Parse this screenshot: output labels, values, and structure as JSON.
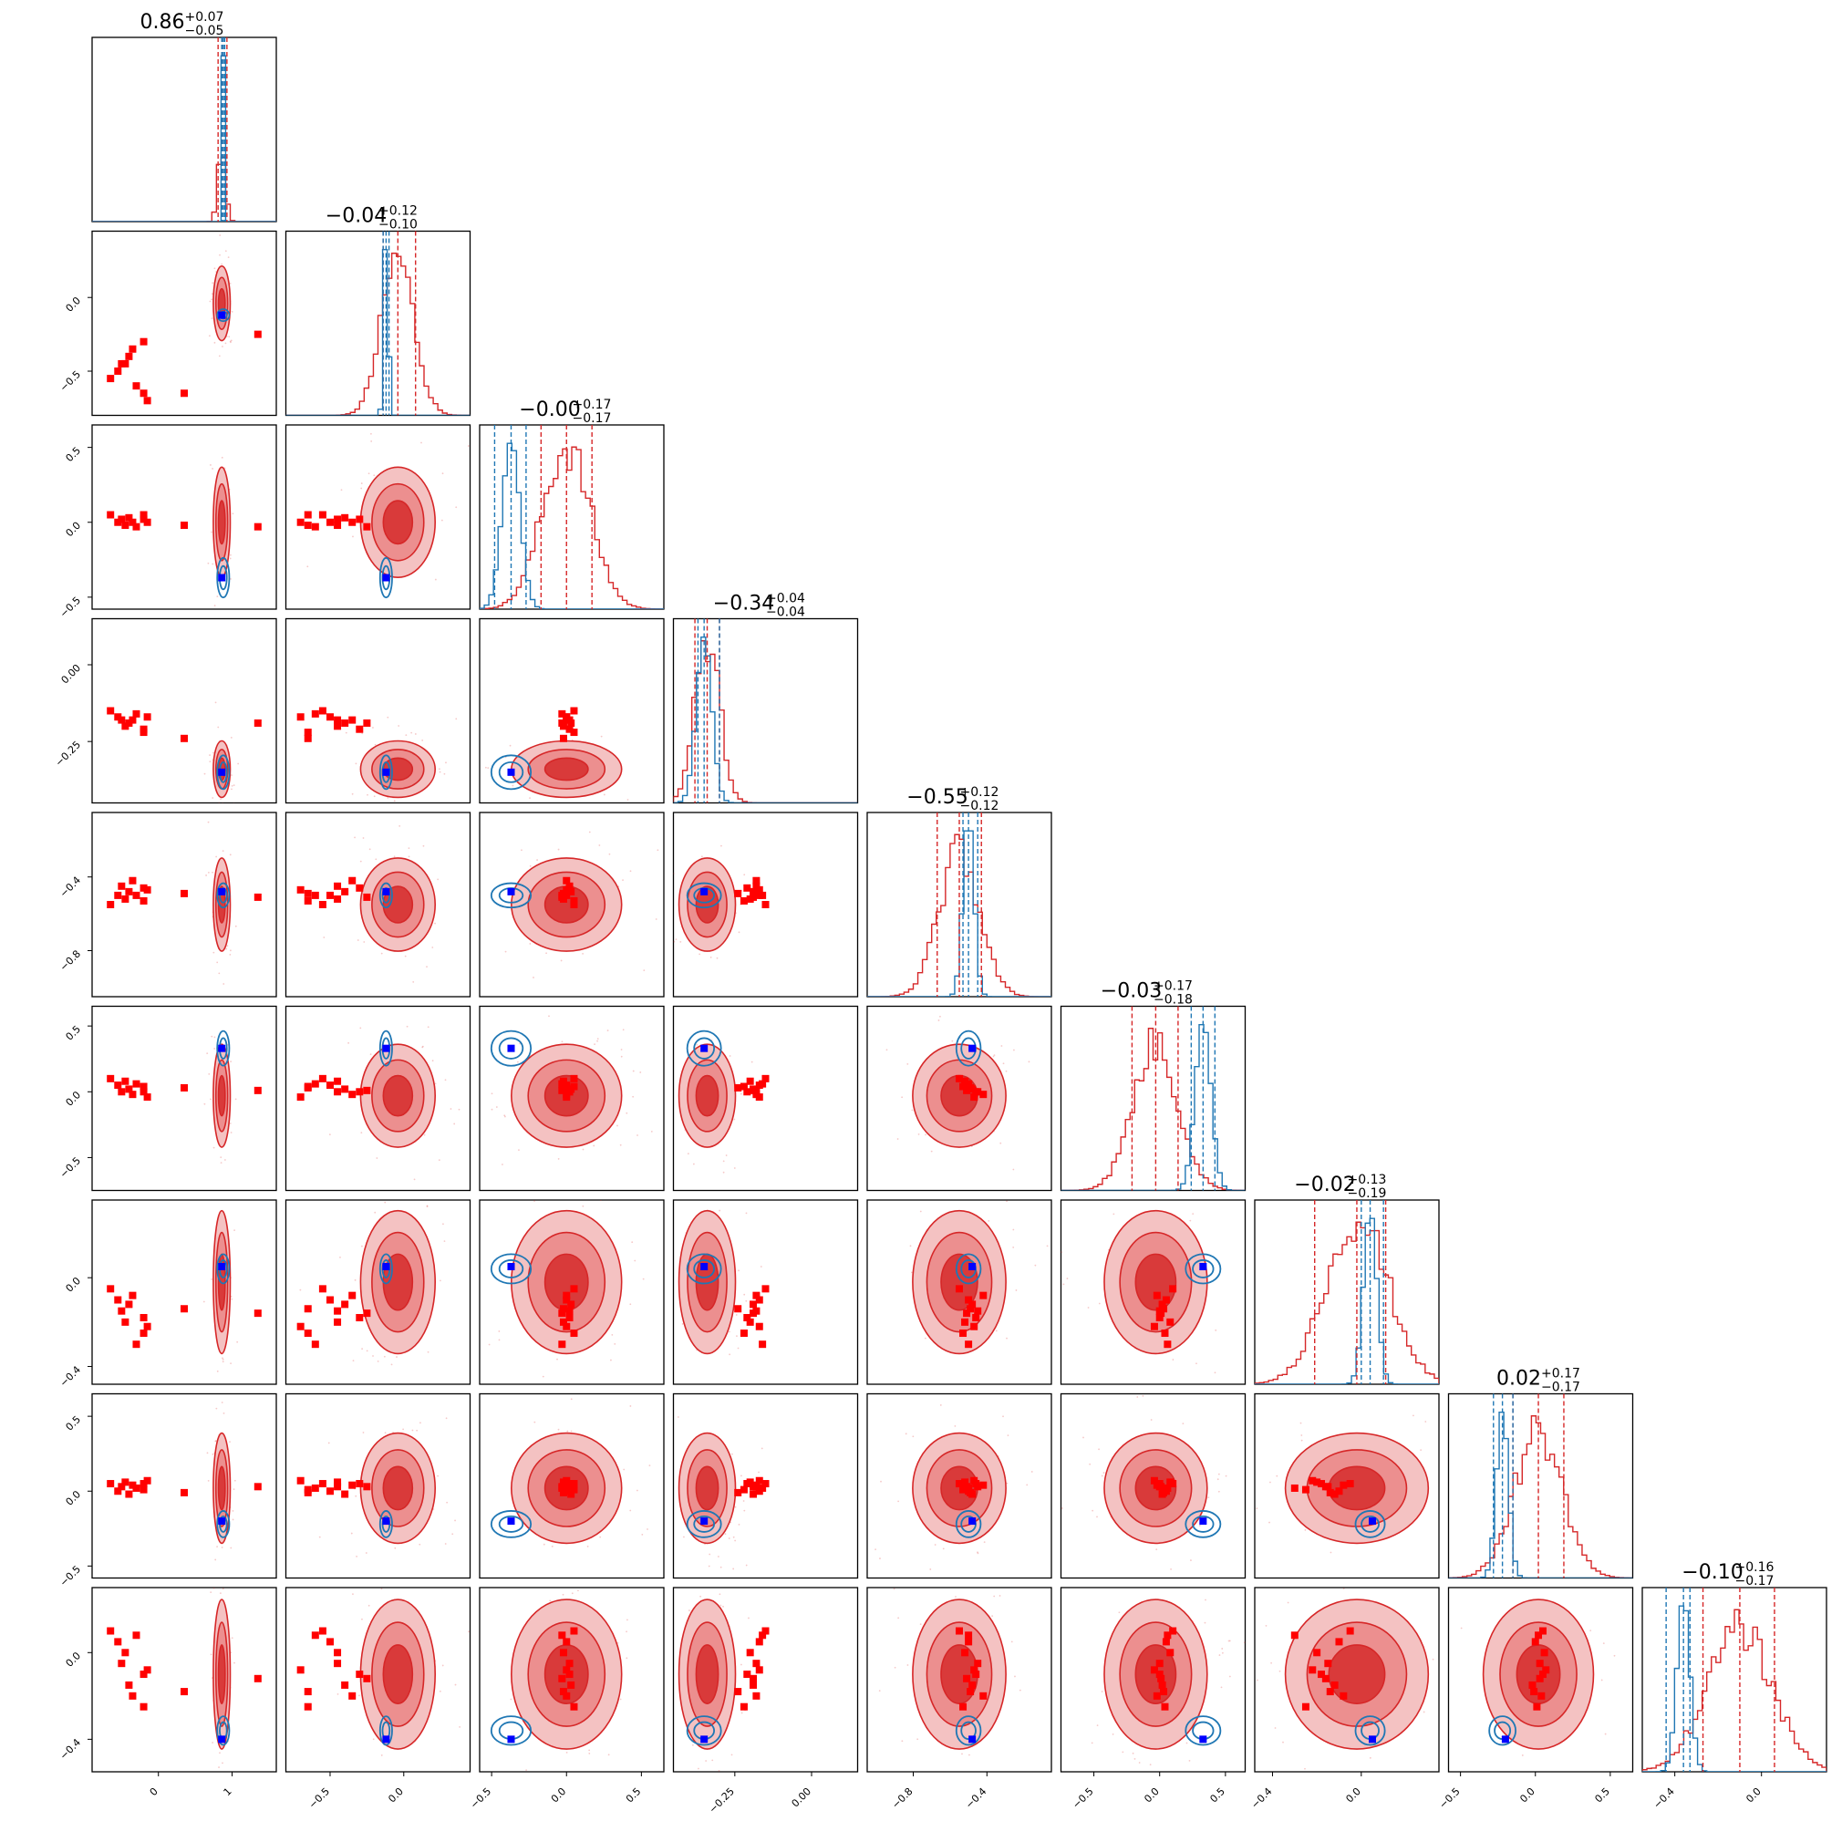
{
  "chart_data": {
    "type": "corner",
    "n_params": 9,
    "series": [
      {
        "name": "",
        "color": "#d62728",
        "style": "filled 2D density contours, step histograms, square markers"
      },
      {
        "name": "",
        "color": "#1f77b4",
        "style": "line 2D contours, step histograms, blue square marker"
      }
    ],
    "diagonal_titles": [
      {
        "value": "0.86",
        "plus": "+0.07",
        "minus": "−0.05"
      },
      {
        "value": "−0.04",
        "plus": "+0.12",
        "minus": "−0.10"
      },
      {
        "value": "−0.00",
        "plus": "+0.17",
        "minus": "−0.17"
      },
      {
        "value": "−0.34",
        "plus": "+0.04",
        "minus": "−0.04"
      },
      {
        "value": "−0.55",
        "plus": "+0.12",
        "minus": "−0.12"
      },
      {
        "value": "−0.03",
        "plus": "+0.17",
        "minus": "−0.18"
      },
      {
        "value": "−0.02",
        "plus": "+0.13",
        "minus": "−0.19"
      },
      {
        "value": "0.02",
        "plus": "+0.17",
        "minus": "−0.17"
      },
      {
        "value": "−0.10",
        "plus": "+0.16",
        "minus": "−0.17"
      }
    ],
    "params": [
      {
        "range": [
          -0.9,
          1.6
        ],
        "ticks": [
          0,
          1
        ],
        "tick_labels": [
          "0",
          "1"
        ],
        "red_median": 0.86,
        "red_q": [
          0.81,
          0.93
        ],
        "red_sd": 0.05,
        "blue_median": 0.88,
        "blue_q": [
          0.86,
          0.9
        ],
        "blue_sd": 0.015,
        "truth": 0.86,
        "outliers": [
          -0.65,
          -0.55,
          -0.5,
          -0.45,
          -0.4,
          -0.35,
          -0.3,
          -0.2,
          -0.2,
          -0.15,
          0.35,
          1.35
        ]
      },
      {
        "range": [
          -0.8,
          0.45
        ],
        "ticks": [
          -0.5,
          0.0
        ],
        "tick_labels": [
          "−0.5",
          "0.0"
        ],
        "red_median": -0.04,
        "red_q": [
          -0.14,
          0.08
        ],
        "red_sd": 0.11,
        "blue_median": -0.12,
        "blue_q": [
          -0.14,
          -0.1
        ],
        "blue_sd": 0.015,
        "truth": -0.12,
        "outliers": [
          -0.55,
          -0.5,
          -0.45,
          -0.45,
          -0.4,
          -0.35,
          -0.6,
          -0.3,
          -0.65,
          -0.7,
          -0.65,
          -0.25
        ]
      },
      {
        "range": [
          -0.58,
          0.65
        ],
        "ticks": [
          -0.5,
          0.0,
          0.5
        ],
        "tick_labels": [
          "−0.5",
          "0.0",
          "0.5"
        ],
        "red_median": -0.0,
        "red_q": [
          -0.17,
          0.17
        ],
        "red_sd": 0.16,
        "blue_median": -0.37,
        "blue_q": [
          -0.48,
          -0.27
        ],
        "blue_sd": 0.06,
        "truth": -0.37,
        "outliers": [
          0.05,
          0.0,
          0.02,
          -0.02,
          0.03,
          0.0,
          -0.03,
          0.02,
          0.05,
          0.0,
          -0.02,
          -0.03
        ]
      },
      {
        "range": [
          -0.45,
          0.15
        ],
        "ticks": [
          -0.25,
          0.0
        ],
        "tick_labels": [
          "−0.25",
          "0.00"
        ],
        "red_median": -0.34,
        "red_q": [
          -0.38,
          -0.3
        ],
        "red_sd": 0.04,
        "blue_median": -0.35,
        "blue_q": [
          -0.37,
          -0.3
        ],
        "blue_sd": 0.025,
        "truth": -0.35,
        "outliers": [
          -0.15,
          -0.17,
          -0.18,
          -0.2,
          -0.19,
          -0.18,
          -0.16,
          -0.21,
          -0.22,
          -0.17,
          -0.24,
          -0.19
        ]
      },
      {
        "range": [
          -1.05,
          -0.05
        ],
        "ticks": [
          -0.8,
          -0.4
        ],
        "tick_labels": [
          "−0.8",
          "−0.4"
        ],
        "red_median": -0.55,
        "red_q": [
          -0.67,
          -0.43
        ],
        "red_sd": 0.11,
        "blue_median": -0.5,
        "blue_q": [
          -0.53,
          -0.45
        ],
        "blue_sd": 0.03,
        "truth": -0.48,
        "outliers": [
          -0.55,
          -0.5,
          -0.45,
          -0.52,
          -0.48,
          -0.42,
          -0.5,
          -0.46,
          -0.53,
          -0.47,
          -0.49,
          -0.51
        ]
      },
      {
        "range": [
          -0.75,
          0.65
        ],
        "ticks": [
          -0.5,
          0.0,
          0.5
        ],
        "tick_labels": [
          "−0.5",
          "0.0",
          "0.5"
        ],
        "red_median": -0.03,
        "red_q": [
          -0.21,
          0.14
        ],
        "red_sd": 0.17,
        "blue_median": 0.33,
        "blue_q": [
          0.24,
          0.42
        ],
        "blue_sd": 0.06,
        "truth": 0.33,
        "outliers": [
          0.1,
          0.05,
          0.0,
          0.08,
          0.02,
          -0.02,
          0.06,
          0.0,
          0.04,
          -0.04,
          0.03,
          0.01
        ]
      },
      {
        "range": [
          -0.48,
          0.35
        ],
        "ticks": [
          -0.4,
          0.0
        ],
        "tick_labels": [
          "−0.4",
          "0.0"
        ],
        "red_median": -0.02,
        "red_q": [
          -0.21,
          0.11
        ],
        "red_sd": 0.14,
        "blue_median": 0.04,
        "blue_q": [
          0.0,
          0.1
        ],
        "blue_sd": 0.03,
        "truth": 0.05,
        "outliers": [
          -0.05,
          -0.1,
          -0.15,
          -0.2,
          -0.12,
          -0.08,
          -0.3,
          -0.18,
          -0.25,
          -0.22,
          -0.14,
          -0.16
        ]
      },
      {
        "range": [
          -0.58,
          0.65
        ],
        "ticks": [
          -0.5,
          0.0,
          0.5
        ],
        "tick_labels": [
          "−0.5",
          "0.0",
          "0.5"
        ],
        "red_median": 0.02,
        "red_q": [
          -0.15,
          0.19
        ],
        "red_sd": 0.16,
        "blue_median": -0.22,
        "blue_q": [
          -0.28,
          -0.15
        ],
        "blue_sd": 0.04,
        "truth": -0.2,
        "outliers": [
          0.05,
          0.0,
          0.03,
          0.06,
          -0.02,
          0.04,
          0.02,
          0.05,
          0.01,
          0.07,
          -0.01,
          0.03
        ]
      },
      {
        "range": [
          -0.55,
          0.3
        ],
        "ticks": [
          -0.4,
          0.0
        ],
        "tick_labels": [
          "−0.4",
          "0.0"
        ],
        "red_median": -0.1,
        "red_q": [
          -0.27,
          0.06
        ],
        "red_sd": 0.15,
        "blue_median": -0.36,
        "blue_q": [
          -0.44,
          -0.33
        ],
        "blue_sd": 0.03,
        "truth": -0.4,
        "outliers": [
          0.1,
          0.05,
          -0.05,
          0.0,
          -0.15,
          -0.2,
          0.08,
          -0.1,
          -0.25,
          -0.08,
          -0.18,
          -0.12
        ]
      }
    ]
  }
}
